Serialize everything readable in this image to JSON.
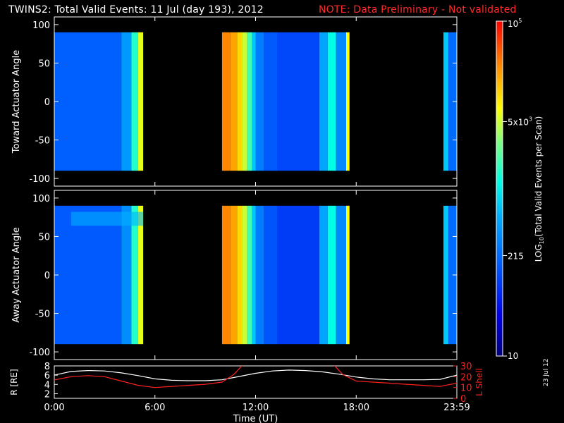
{
  "header": {
    "title": "TWINS2: Total Valid Events: 11 Jul (day 193), 2012",
    "note": "NOTE: Data Preliminary - Not validated"
  },
  "stamp": "23 Jul 12",
  "colors": {
    "note": "#ff2a2a",
    "background": "#000000",
    "axis": "#ffffff",
    "rline": "#ffffff",
    "lline": "#ff2020"
  },
  "chart_data": [
    {
      "type": "heatmap",
      "title": "",
      "ylabel": "Toward Actuator Angle",
      "ylim": [
        -110,
        110
      ],
      "yticks": [
        "100",
        "50",
        "0",
        "-50",
        "-100"
      ],
      "xlim": [
        0,
        24
      ],
      "angle_range": [
        -90,
        90
      ],
      "coverage_hours": [
        [
          0,
          5.3
        ],
        [
          10.0,
          17.6
        ],
        [
          23.2,
          24
        ]
      ],
      "column_levels": [
        {
          "x": [
            0,
            4.0
          ],
          "level": 0.28
        },
        {
          "x": [
            4.0,
            4.6
          ],
          "level": 0.38
        },
        {
          "x": [
            4.6,
            5.0
          ],
          "level": 0.55
        },
        {
          "x": [
            5.0,
            5.3
          ],
          "level": 0.72
        },
        {
          "x": [
            10.0,
            10.5
          ],
          "level": 0.87
        },
        {
          "x": [
            10.5,
            10.9
          ],
          "level": 0.84
        },
        {
          "x": [
            10.9,
            11.2
          ],
          "level": 0.78
        },
        {
          "x": [
            11.2,
            11.5
          ],
          "level": 0.7
        },
        {
          "x": [
            11.5,
            11.8
          ],
          "level": 0.58
        },
        {
          "x": [
            11.8,
            12.0
          ],
          "level": 0.45
        },
        {
          "x": [
            12.0,
            12.5
          ],
          "level": 0.33
        },
        {
          "x": [
            12.5,
            13.3
          ],
          "level": 0.27
        },
        {
          "x": [
            13.3,
            15.8
          ],
          "level": 0.24
        },
        {
          "x": [
            15.8,
            16.3
          ],
          "level": 0.4
        },
        {
          "x": [
            16.3,
            16.8
          ],
          "level": 0.52
        },
        {
          "x": [
            16.8,
            17.4
          ],
          "level": 0.35
        },
        {
          "x": [
            17.4,
            17.6
          ],
          "level": 0.74
        },
        {
          "x": [
            23.2,
            23.5
          ],
          "level": 0.45
        },
        {
          "x": [
            23.5,
            24
          ],
          "level": 0.3
        }
      ]
    },
    {
      "type": "heatmap",
      "title": "",
      "ylabel": "Away Actuator Angle",
      "ylim": [
        -110,
        110
      ],
      "yticks": [
        "100",
        "50",
        "0",
        "-50",
        "-100"
      ],
      "xlim": [
        0,
        24
      ],
      "angle_range": [
        -90,
        90
      ],
      "coverage_hours": [
        [
          0,
          5.3
        ],
        [
          10.0,
          17.6
        ],
        [
          23.2,
          24
        ]
      ],
      "column_levels": [
        {
          "x": [
            0,
            4.0
          ],
          "level": 0.27
        },
        {
          "x": [
            4.0,
            4.6
          ],
          "level": 0.36
        },
        {
          "x": [
            4.6,
            5.0
          ],
          "level": 0.55
        },
        {
          "x": [
            5.0,
            5.3
          ],
          "level": 0.72
        },
        {
          "x": [
            10.0,
            10.5
          ],
          "level": 0.87
        },
        {
          "x": [
            10.5,
            10.9
          ],
          "level": 0.84
        },
        {
          "x": [
            10.9,
            11.2
          ],
          "level": 0.78
        },
        {
          "x": [
            11.2,
            11.5
          ],
          "level": 0.7
        },
        {
          "x": [
            11.5,
            11.8
          ],
          "level": 0.58
        },
        {
          "x": [
            11.8,
            12.0
          ],
          "level": 0.45
        },
        {
          "x": [
            12.0,
            12.5
          ],
          "level": 0.33
        },
        {
          "x": [
            12.5,
            13.3
          ],
          "level": 0.26
        },
        {
          "x": [
            13.3,
            15.8
          ],
          "level": 0.22
        },
        {
          "x": [
            15.8,
            16.3
          ],
          "level": 0.4
        },
        {
          "x": [
            16.3,
            16.8
          ],
          "level": 0.52
        },
        {
          "x": [
            16.8,
            17.4
          ],
          "level": 0.35
        },
        {
          "x": [
            17.4,
            17.6
          ],
          "level": 0.74
        },
        {
          "x": [
            23.2,
            23.5
          ],
          "level": 0.45
        },
        {
          "x": [
            23.5,
            24
          ],
          "level": 0.3
        }
      ]
    },
    {
      "type": "line",
      "ylabel_left": "R [RE]",
      "ylabel_right": "L Shell",
      "xlabel": "Time (UT)",
      "xlim": [
        0,
        24
      ],
      "xticks": [
        "0:00",
        "6:00",
        "12:00",
        "18:00",
        "23:59"
      ],
      "xtick_hours": [
        0,
        6,
        12,
        18,
        24
      ],
      "ylim_left": [
        1,
        8
      ],
      "yticks_left": [
        "8",
        "6",
        "4",
        "2"
      ],
      "ylim_right": [
        0,
        30
      ],
      "yticks_right": [
        "30",
        "20",
        "10",
        "0"
      ],
      "series": [
        {
          "name": "R [RE]",
          "axis": "left",
          "x": [
            0,
            1,
            2,
            3,
            4,
            5,
            6,
            7,
            8,
            9,
            10,
            11,
            12,
            13,
            14,
            15,
            16,
            17,
            18,
            19,
            20,
            21,
            22,
            23,
            24
          ],
          "y": [
            6.0,
            6.8,
            7.0,
            6.9,
            6.5,
            5.9,
            5.2,
            4.9,
            4.8,
            4.8,
            5.0,
            5.7,
            6.4,
            6.9,
            7.1,
            7.0,
            6.7,
            6.2,
            5.6,
            5.2,
            5.0,
            5.0,
            5.0,
            5.1,
            6.0
          ]
        },
        {
          "name": "L Shell",
          "axis": "right",
          "x": [
            0,
            1,
            2,
            3,
            4,
            5,
            6,
            7,
            8,
            9,
            10,
            10.7,
            11.3,
            16.6,
            17.2,
            18,
            19,
            20,
            21,
            22,
            23,
            24
          ],
          "y": [
            17,
            20,
            21,
            20,
            16,
            12,
            10,
            11,
            12,
            13,
            15,
            22,
            32,
            32,
            22,
            16,
            15,
            14,
            13,
            12,
            11,
            14
          ]
        }
      ]
    }
  ],
  "colorbar": {
    "label": "LOG10(Total Valid Events per Scan)",
    "ticks": [
      {
        "label": "10",
        "level": 0.0
      },
      {
        "label": "215",
        "level": 0.3
      },
      {
        "label": "5x10^3",
        "level": 0.7
      },
      {
        "label": "10^5",
        "level": 1.0
      }
    ]
  }
}
